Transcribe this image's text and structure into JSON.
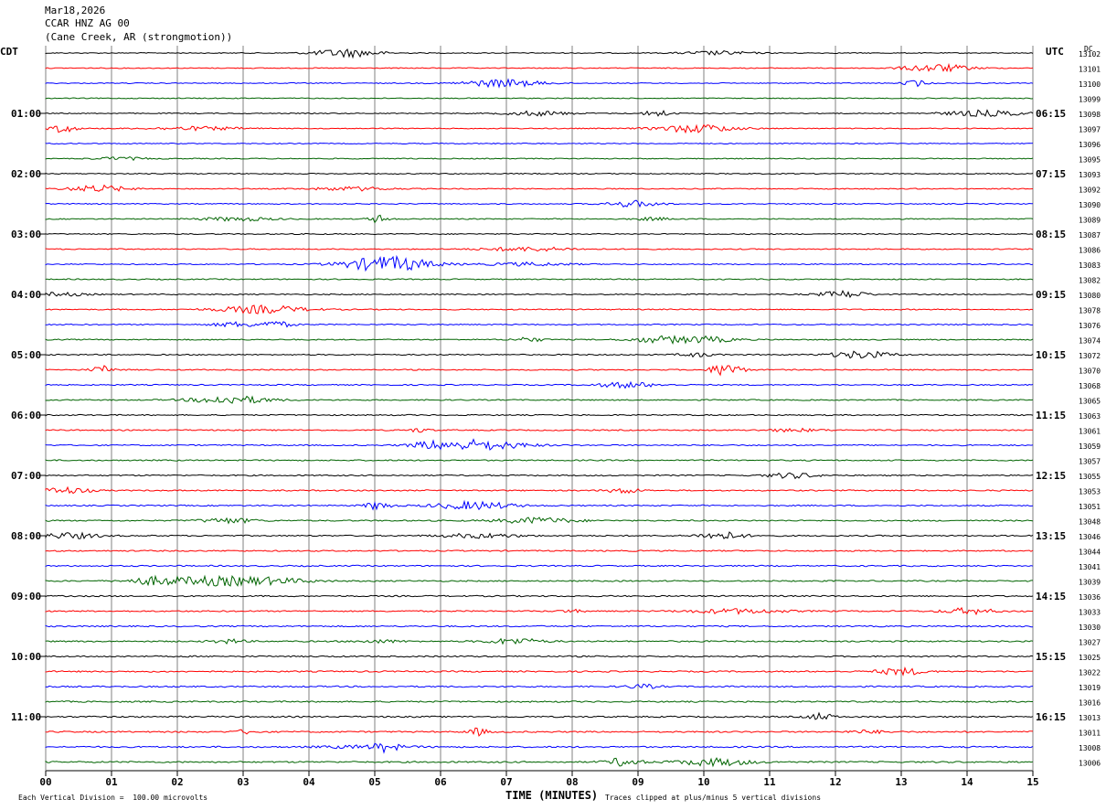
{
  "header": {
    "date": "Mar18,2026",
    "station": "CCAR HNZ AG 00",
    "location": "(Cane Creek, AR (strongmotion))"
  },
  "left_zone_label": "CDT",
  "right_zone_label": "UTC",
  "right_counter_label": "DC",
  "footer": {
    "scale_note": "Each Vertical Division =  100.00 microvolts",
    "xlabel": "TIME (MINUTES)",
    "clip_note": "Traces clipped at plus/minus 5 vertical divisions"
  },
  "colors": {
    "black": "#000000",
    "red": "#ff0000",
    "blue": "#0000ff",
    "green": "#006400",
    "grid": "#808080"
  },
  "chart_data": {
    "type": "line",
    "title": "CCAR HNZ AG 00",
    "xlabel": "TIME (MINUTES)",
    "xlim": [
      0,
      15
    ],
    "x_ticks": [
      "00",
      "01",
      "02",
      "03",
      "04",
      "05",
      "06",
      "07",
      "08",
      "09",
      "10",
      "11",
      "12",
      "13",
      "14",
      "15"
    ],
    "left_hour_labels": [
      "01:00",
      "02:00",
      "03:00",
      "04:00",
      "05:00",
      "06:00",
      "07:00",
      "08:00",
      "09:00",
      "10:00",
      "11:00"
    ],
    "right_hour_labels": [
      "06:15",
      "07:15",
      "08:15",
      "09:15",
      "10:15",
      "11:15",
      "12:15",
      "13:15",
      "14:15",
      "15:15",
      "16:15"
    ],
    "trace_color_cycle": [
      "black",
      "red",
      "blue",
      "green"
    ],
    "trace_counters": [
      "13102",
      "13101",
      "13100",
      "13099",
      "13098",
      "13097",
      "13096",
      "13095",
      "13093",
      "13092",
      "13090",
      "13089",
      "13087",
      "13086",
      "13083",
      "13082",
      "13080",
      "13078",
      "13076",
      "13074",
      "13072",
      "13070",
      "13068",
      "13065",
      "13063",
      "13061",
      "13059",
      "13057",
      "13055",
      "13053",
      "13051",
      "13048",
      "13046",
      "13044",
      "13041",
      "13039",
      "13036",
      "13033",
      "13030",
      "13027",
      "13025",
      "13022",
      "13019",
      "13016",
      "13013",
      "13011",
      "13008",
      "13006"
    ]
  }
}
